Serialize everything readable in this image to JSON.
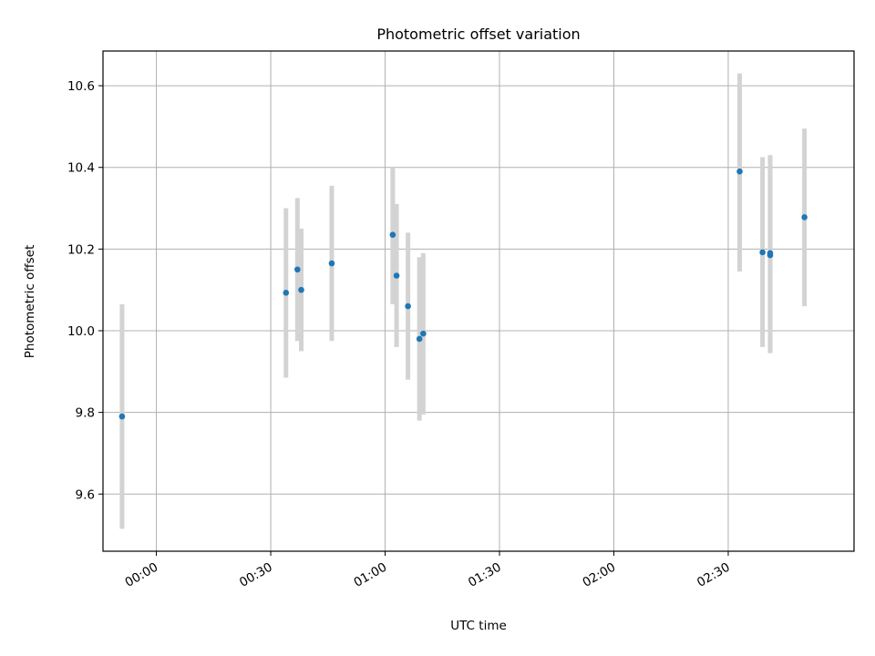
{
  "chart_data": {
    "type": "scatter",
    "title": "Photometric offset variation",
    "xlabel": "UTC time",
    "ylabel": "Photometric offset",
    "x_axis_kind": "time",
    "xlim": [
      "23:46",
      "03:03"
    ],
    "ylim": [
      9.46,
      10.685
    ],
    "x_ticks": [
      "00:00",
      "00:30",
      "01:00",
      "01:30",
      "02:00",
      "02:30"
    ],
    "y_ticks": [
      "9.6",
      "9.8",
      "10.0",
      "10.2",
      "10.4",
      "10.6"
    ],
    "grid": true,
    "point_color": "#1f77b4",
    "errorbar_color": "#d3d3d3",
    "series": [
      {
        "points": [
          {
            "x": "23:51",
            "y": 9.79,
            "lower": 9.515,
            "upper": 10.065
          },
          {
            "x": "00:34",
            "y": 10.093,
            "lower": 9.885,
            "upper": 10.3
          },
          {
            "x": "00:37",
            "y": 10.15,
            "lower": 9.975,
            "upper": 10.325
          },
          {
            "x": "00:38",
            "y": 10.1,
            "lower": 9.95,
            "upper": 10.25
          },
          {
            "x": "00:46",
            "y": 10.165,
            "lower": 9.975,
            "upper": 10.355
          },
          {
            "x": "01:02",
            "y": 10.235,
            "lower": 10.065,
            "upper": 10.4
          },
          {
            "x": "01:03",
            "y": 10.135,
            "lower": 9.96,
            "upper": 10.31
          },
          {
            "x": "01:06",
            "y": 10.06,
            "lower": 9.88,
            "upper": 10.24
          },
          {
            "x": "01:09",
            "y": 9.98,
            "lower": 9.78,
            "upper": 10.18
          },
          {
            "x": "01:10",
            "y": 9.993,
            "lower": 9.795,
            "upper": 10.19
          },
          {
            "x": "02:33",
            "y": 10.39,
            "lower": 10.145,
            "upper": 10.63
          },
          {
            "x": "02:39",
            "y": 10.192,
            "lower": 9.96,
            "upper": 10.425
          },
          {
            "x": "02:41",
            "y": 10.185,
            "lower": 9.945,
            "upper": 10.425
          },
          {
            "x": "02:41",
            "y": 10.19,
            "lower": 9.95,
            "upper": 10.43
          },
          {
            "x": "02:50",
            "y": 10.278,
            "lower": 10.06,
            "upper": 10.495
          }
        ]
      }
    ]
  }
}
